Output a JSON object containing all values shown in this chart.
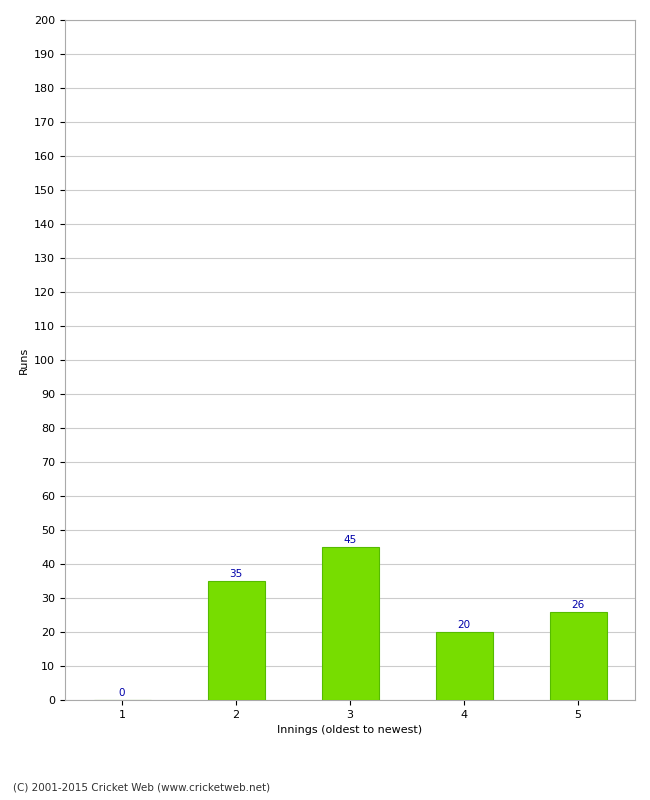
{
  "categories": [
    1,
    2,
    3,
    4,
    5
  ],
  "values": [
    0,
    35,
    45,
    20,
    26
  ],
  "bar_color": "#77dd00",
  "bar_edge_color": "#55bb00",
  "value_color": "#0000aa",
  "xlabel": "Innings (oldest to newest)",
  "ylabel": "Runs",
  "ylim": [
    0,
    200
  ],
  "yticks": [
    0,
    10,
    20,
    30,
    40,
    50,
    60,
    70,
    80,
    90,
    100,
    110,
    120,
    130,
    140,
    150,
    160,
    170,
    180,
    190,
    200
  ],
  "footnote": "(C) 2001-2015 Cricket Web (www.cricketweb.net)",
  "background_color": "#ffffff",
  "grid_color": "#cccccc",
  "value_fontsize": 7.5,
  "axis_fontsize": 8,
  "label_fontsize": 8,
  "footnote_fontsize": 7.5
}
